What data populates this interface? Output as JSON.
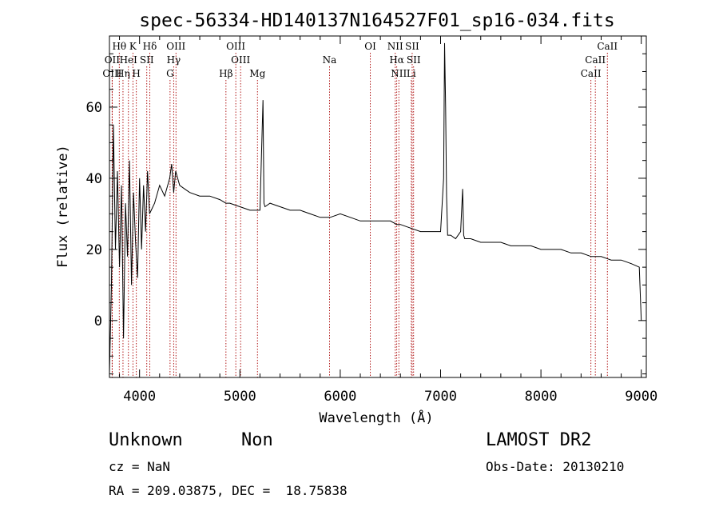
{
  "chart_data": {
    "type": "line",
    "title": "spec-56334-HD140137N164527F01_sp16-034.fits",
    "xlabel": "Wavelength (Å)",
    "ylabel": "Flux (relative)",
    "xlim": [
      3700,
      9050
    ],
    "ylim": [
      -16,
      80
    ],
    "xticks": [
      4000,
      5000,
      6000,
      7000,
      8000,
      9000
    ],
    "yticks": [
      0,
      20,
      40,
      60
    ],
    "grid": false,
    "line_color": "#000000",
    "marker_color": "#aa0000",
    "series": [
      {
        "x": [
          3700,
          3720,
          3740,
          3760,
          3780,
          3800,
          3820,
          3840,
          3860,
          3880,
          3900,
          3920,
          3940,
          3960,
          3980,
          4000,
          4020,
          4040,
          4060,
          4080,
          4100,
          4150,
          4200,
          4250,
          4300,
          4320,
          4340,
          4360,
          4400,
          4450,
          4500,
          4600,
          4700,
          4800,
          4861,
          4900,
          5000,
          5100,
          5200,
          5230,
          5240,
          5250,
          5300,
          5400,
          5500,
          5600,
          5700,
          5800,
          5900,
          6000,
          6100,
          6200,
          6300,
          6400,
          6500,
          6563,
          6600,
          6700,
          6800,
          6900,
          7000,
          7030,
          7040,
          7050,
          7060,
          7070,
          7100,
          7150,
          7200,
          7220,
          7230,
          7240,
          7260,
          7300,
          7400,
          7500,
          7600,
          7700,
          7800,
          7900,
          8000,
          8100,
          8200,
          8300,
          8400,
          8500,
          8600,
          8700,
          8800,
          8900,
          8980,
          9000
        ],
        "y": [
          -15,
          10,
          55,
          20,
          42,
          15,
          38,
          -5,
          33,
          18,
          45,
          10,
          36,
          22,
          12,
          40,
          20,
          38,
          25,
          42,
          30,
          33,
          38,
          35,
          40,
          44,
          36,
          42,
          38,
          37,
          36,
          35,
          35,
          34,
          33,
          33,
          32,
          31,
          31,
          62,
          33,
          32,
          33,
          32,
          31,
          31,
          30,
          29,
          29,
          30,
          29,
          28,
          28,
          28,
          28,
          27,
          27,
          26,
          25,
          25,
          25,
          40,
          78,
          60,
          35,
          24,
          24,
          23,
          25,
          37,
          24,
          23,
          23,
          23,
          22,
          22,
          22,
          21,
          21,
          21,
          20,
          20,
          20,
          19,
          19,
          18,
          18,
          17,
          17,
          16,
          15,
          0
        ]
      }
    ],
    "lines": [
      {
        "label": "Hθ",
        "wave": 3798,
        "row": 0
      },
      {
        "label": "K",
        "wave": 3934,
        "row": 0
      },
      {
        "label": "Hδ",
        "wave": 4102,
        "row": 0
      },
      {
        "label": "OIII",
        "wave": 4363,
        "row": 0
      },
      {
        "label": "OIII",
        "wave": 4959,
        "row": 0
      },
      {
        "label": "OI",
        "wave": 6300,
        "row": 0
      },
      {
        "label": "NII",
        "wave": 6548,
        "row": 0
      },
      {
        "label": "SII",
        "wave": 6717,
        "row": 0
      },
      {
        "label": "CaII",
        "wave": 8662,
        "row": 0
      },
      {
        "label": "OII",
        "wave": 3727,
        "row": 1
      },
      {
        "label": "HeI",
        "wave": 3889,
        "row": 1
      },
      {
        "label": "SII",
        "wave": 4072,
        "row": 1
      },
      {
        "label": "Hγ",
        "wave": 4340,
        "row": 1
      },
      {
        "label": "OIII",
        "wave": 5007,
        "row": 1
      },
      {
        "label": "Na",
        "wave": 5893,
        "row": 1
      },
      {
        "label": "Hα",
        "wave": 6563,
        "row": 1
      },
      {
        "label": "SII",
        "wave": 6731,
        "row": 1
      },
      {
        "label": "CaII",
        "wave": 8542,
        "row": 1
      },
      {
        "label": "OIII",
        "wave": 3727,
        "row": 2
      },
      {
        "label": "Hη",
        "wave": 3835,
        "row": 2
      },
      {
        "label": "H",
        "wave": 3968,
        "row": 2
      },
      {
        "label": "G",
        "wave": 4304,
        "row": 2
      },
      {
        "label": "Hβ",
        "wave": 4861,
        "row": 2
      },
      {
        "label": "Mg",
        "wave": 5175,
        "row": 2
      },
      {
        "label": "NII",
        "wave": 6584,
        "row": 2
      },
      {
        "label": "Li",
        "wave": 6708,
        "row": 2
      },
      {
        "label": "CaII",
        "wave": 8498,
        "row": 2
      }
    ]
  },
  "info": {
    "class": "Unknown",
    "subclass": "Non",
    "survey": "LAMOST DR2",
    "cz": "cz = NaN",
    "obs_date": "Obs-Date: 20130210",
    "coords": "RA = 209.03875, DEC =  18.75838"
  }
}
